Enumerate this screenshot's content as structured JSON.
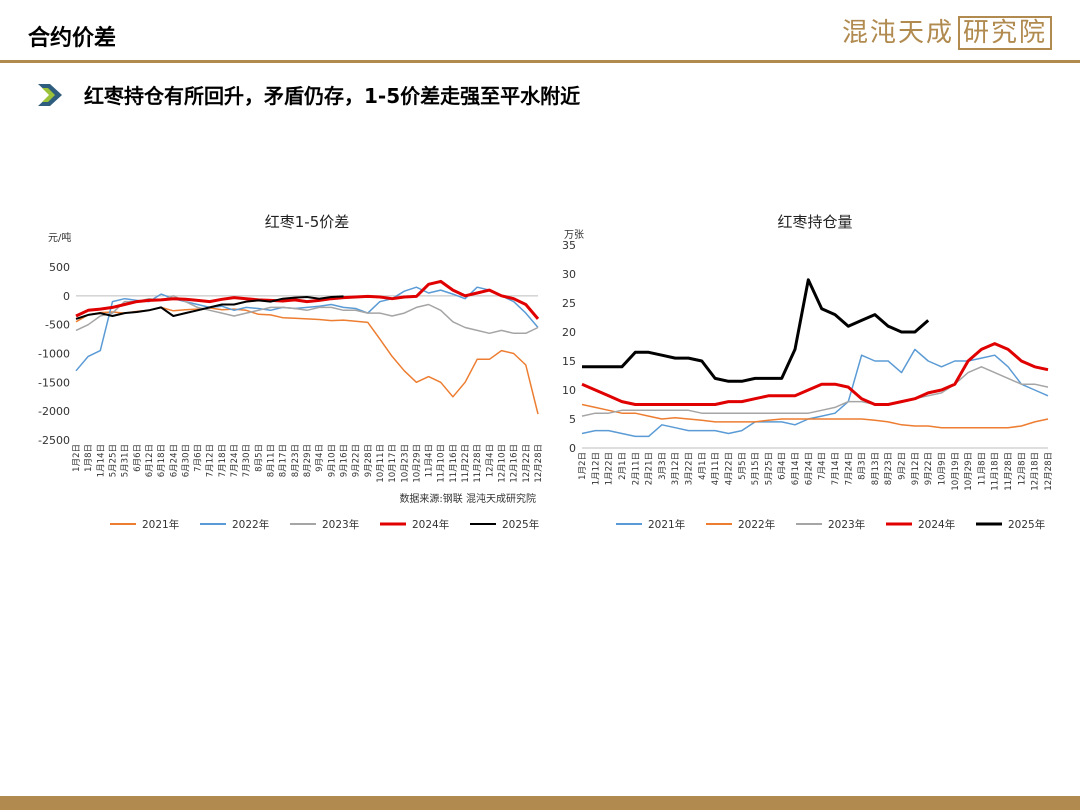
{
  "header": {
    "title": "合约价差",
    "logo_text": "混沌天成",
    "logo_boxed": "研究院",
    "subtitle": "红枣持仓有所回升，矛盾仍存，1-5价差走强至平水附近"
  },
  "colors": {
    "accent_gold": "#b08a4f",
    "bullet": "#2e5d7e"
  },
  "chart_data": [
    {
      "type": "line",
      "title": "红枣1-5价差",
      "ylabel": "元/吨",
      "ylim": [
        -2500,
        500
      ],
      "yticks": [
        500,
        0,
        -500,
        -1000,
        -1500,
        -2000,
        -2500
      ],
      "x_tick_labels": [
        "1月2日",
        "1月8日",
        "1月14日",
        "5月25日",
        "5月31日",
        "6月6日",
        "6月12日",
        "6月18日",
        "6月24日",
        "6月30日",
        "7月6日",
        "7月12日",
        "7月18日",
        "7月24日",
        "7月30日",
        "8月5日",
        "8月11日",
        "8月17日",
        "8月23日",
        "8月29日",
        "9月4日",
        "9月10日",
        "9月16日",
        "9月22日",
        "9月28日",
        "10月11日",
        "10月17日",
        "10月23日",
        "10月29日",
        "11月4日",
        "11月10日",
        "11月16日",
        "11月22日",
        "11月28日",
        "12月4日",
        "12月10日",
        "12月16日",
        "12月22日",
        "12月28日"
      ],
      "annotation": "数据来源:钢联  混沌天成研究院",
      "legend_position": "bottom",
      "series": [
        {
          "name": "2021年",
          "color": "#ed7d31",
          "width": 1.5,
          "values": [
            -450,
            -330,
            -290,
            -280,
            -300,
            -270,
            -250,
            -200,
            -260,
            -240,
            -230,
            -210,
            -240,
            -230,
            -250,
            -320,
            -330,
            -380,
            -390,
            -400,
            -410,
            -430,
            -420,
            -440,
            -460,
            -750,
            -1050,
            -1300,
            -1500,
            -1400,
            -1500,
            -1750,
            -1500,
            -1100,
            -1100,
            -950,
            -1000,
            -1200,
            -2050
          ]
        },
        {
          "name": "2022年",
          "color": "#5b9bd5",
          "width": 1.5,
          "values": [
            -1300,
            -1050,
            -950,
            -100,
            -50,
            -80,
            -100,
            30,
            -50,
            -100,
            -150,
            -200,
            -180,
            -250,
            -200,
            -220,
            -250,
            -200,
            -220,
            -200,
            -180,
            -150,
            -200,
            -220,
            -300,
            -100,
            -50,
            80,
            150,
            50,
            100,
            30,
            -50,
            150,
            100,
            0,
            -100,
            -300,
            -550
          ]
        },
        {
          "name": "2023年",
          "color": "#a5a5a5",
          "width": 1.5,
          "values": [
            -600,
            -500,
            -350,
            -300,
            -100,
            -100,
            -50,
            -80,
            0,
            -100,
            -200,
            -250,
            -300,
            -350,
            -300,
            -250,
            -200,
            -200,
            -220,
            -250,
            -200,
            -200,
            -250,
            -250,
            -300,
            -300,
            -350,
            -300,
            -200,
            -150,
            -250,
            -450,
            -550,
            -600,
            -650,
            -600,
            -650,
            -650,
            -550
          ]
        },
        {
          "name": "2024年",
          "color": "#e00000",
          "width": 3,
          "values": [
            -350,
            -250,
            -230,
            -200,
            -150,
            -100,
            -80,
            -70,
            -50,
            -60,
            -80,
            -100,
            -60,
            -30,
            -50,
            -70,
            -80,
            -90,
            -70,
            -100,
            -80,
            -50,
            -30,
            -20,
            -10,
            -20,
            -50,
            -20,
            -10,
            200,
            250,
            100,
            0,
            50,
            100,
            0,
            -50,
            -150,
            -400
          ]
        },
        {
          "name": "2025年",
          "color": "#000000",
          "width": 2,
          "values": [
            -400,
            -330,
            -300,
            -350,
            -300,
            -280,
            -250,
            -200,
            -350,
            -300,
            -250,
            -200,
            -150,
            -150,
            -100,
            -80,
            -100,
            -50,
            -30,
            -20,
            -50,
            -20,
            -10
          ]
        }
      ]
    },
    {
      "type": "line",
      "title": "红枣持仓量",
      "ylabel": "万张",
      "ylim": [
        0,
        35
      ],
      "yticks": [
        35,
        30,
        25,
        20,
        15,
        10,
        5,
        0
      ],
      "x_tick_labels": [
        "1月2日",
        "1月12日",
        "1月22日",
        "2月1日",
        "2月11日",
        "2月21日",
        "3月3日",
        "3月12日",
        "3月22日",
        "4月1日",
        "4月11日",
        "4月22日",
        "5月5日",
        "5月15日",
        "5月25日",
        "6月4日",
        "6月14日",
        "6月24日",
        "7月4日",
        "7月14日",
        "7月24日",
        "8月3日",
        "8月13日",
        "8月23日",
        "9月2日",
        "9月12日",
        "9月22日",
        "10月9日",
        "10月19日",
        "10月29日",
        "11月8日",
        "11月18日",
        "11月28日",
        "12月8日",
        "12月18日",
        "12月28日"
      ],
      "legend_position": "bottom",
      "series": [
        {
          "name": "2021年",
          "color": "#5b9bd5",
          "width": 1.5,
          "values": [
            2.5,
            3,
            3,
            2.5,
            2,
            2,
            4,
            3.5,
            3,
            3,
            3,
            2.5,
            3,
            4.5,
            4.5,
            4.5,
            4,
            5,
            5.5,
            6,
            8,
            16,
            15,
            15,
            13,
            17,
            15,
            14,
            15,
            15,
            15.5,
            16,
            14,
            11,
            10,
            9
          ]
        },
        {
          "name": "2022年",
          "color": "#ed7d31",
          "width": 1.5,
          "values": [
            7.5,
            7,
            6.5,
            6,
            6,
            5.5,
            5,
            5.2,
            5,
            4.8,
            4.5,
            4.5,
            4.5,
            4.5,
            4.8,
            5,
            5,
            5,
            5,
            5,
            5,
            5,
            4.8,
            4.5,
            4,
            3.8,
            3.8,
            3.5,
            3.5,
            3.5,
            3.5,
            3.5,
            3.5,
            3.8,
            4.5,
            5
          ]
        },
        {
          "name": "2023年",
          "color": "#a5a5a5",
          "width": 1.5,
          "values": [
            5.5,
            6,
            6,
            6.5,
            6.5,
            6.5,
            6.5,
            6.5,
            6.5,
            6,
            6,
            6,
            6,
            6,
            6,
            6,
            6,
            6,
            6.5,
            7,
            8,
            8,
            7.5,
            7.5,
            8,
            8.5,
            9,
            9.5,
            11,
            13,
            14,
            13,
            12,
            11,
            11,
            10.5
          ]
        },
        {
          "name": "2024年",
          "color": "#e00000",
          "width": 3,
          "values": [
            11,
            10,
            9,
            8,
            7.5,
            7.5,
            7.5,
            7.5,
            7.5,
            7.5,
            7.5,
            8,
            8,
            8.5,
            9,
            9,
            9,
            10,
            11,
            11,
            10.5,
            8.5,
            7.5,
            7.5,
            8,
            8.5,
            9.5,
            10,
            11,
            15,
            17,
            18,
            17,
            15,
            14,
            13.5
          ]
        },
        {
          "name": "2025年",
          "color": "#000000",
          "width": 3,
          "values": [
            14,
            14,
            14,
            14,
            16.5,
            16.5,
            16,
            15.5,
            15.5,
            15,
            12,
            11.5,
            11.5,
            12,
            12,
            12,
            17,
            29,
            24,
            23,
            21,
            22,
            23,
            21,
            20,
            20,
            22
          ]
        }
      ]
    }
  ]
}
